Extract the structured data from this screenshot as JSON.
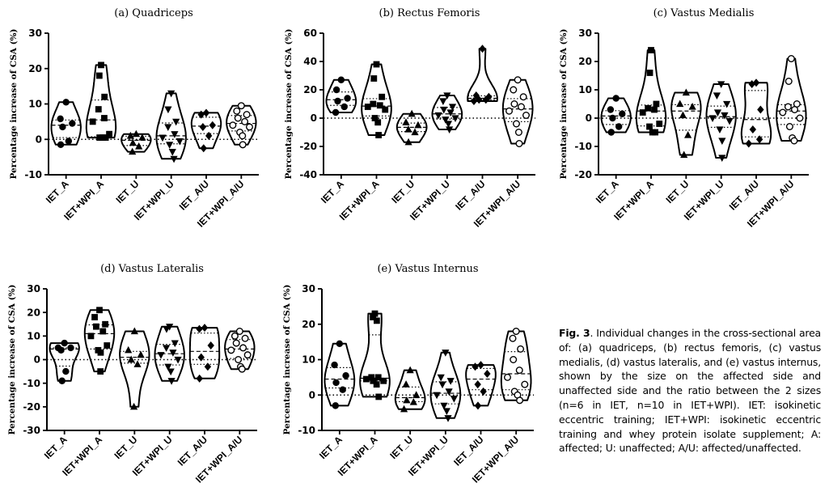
{
  "caption": {
    "label": "Fig. 3",
    "text": ". Individual changes in the cross-sectional area of: (a) quadriceps, (b) rectus femoris, (c) vastus medialis, (d) vastus lateralis, and (e) vastus internus, shown by the size on the affected side and unaffected side and the ratio between the 2 sizes (n=6 in IET, n=10 in IET+WPI). IET: isokinetic eccentric training; IET+WPI: isokinetic eccentric training and whey protein isolate supplement; A: affected; U: unaffected; A/U: affected/unaffected."
  },
  "chart_data": [
    {
      "type": "violin",
      "title": "(a) Quadriceps",
      "ylabel": "Percentage increase of CSA (%)",
      "ylim": [
        -10,
        30
      ],
      "yticks": [
        -10,
        0,
        10,
        20,
        30
      ],
      "reference_line": 0,
      "categories": [
        "IET_A",
        "IET+WPI_A",
        "IET_U",
        "IET+WPI_U",
        "IET_A/U",
        "IET+WPI_A/U"
      ],
      "markers": [
        "circle",
        "square",
        "triangle",
        "triangle-down",
        "diamond",
        "circle-open"
      ],
      "series": [
        {
          "values": [
            10.5,
            5.8,
            4.5,
            3.5,
            -0.5,
            -1.5
          ]
        },
        {
          "values": [
            21,
            18,
            12,
            8.5,
            6,
            5,
            1.5,
            0.5,
            0.5,
            0.5
          ]
        },
        {
          "values": [
            1.5,
            1,
            0.5,
            -1,
            -2,
            -3.5
          ]
        },
        {
          "values": [
            13,
            8.5,
            5,
            3.5,
            1.5,
            0.5,
            -0.5,
            -1.5,
            -3.5,
            -5.5
          ]
        },
        {
          "values": [
            7.5,
            7,
            4,
            3.5,
            1,
            -2.5
          ]
        },
        {
          "values": [
            9.5,
            8,
            7,
            6,
            5,
            4,
            3.5,
            2,
            1,
            -1.5
          ]
        }
      ]
    },
    {
      "type": "violin",
      "title": "(b) Rectus Femoris",
      "ylabel": "Percentage increase of CSA (%)",
      "ylim": [
        -40,
        60
      ],
      "yticks": [
        -40,
        -20,
        0,
        20,
        40,
        60
      ],
      "reference_line": 0,
      "categories": [
        "IET_A",
        "IET+WPI_A",
        "IET_U",
        "IET+WPI_U",
        "IET_A/U",
        "IET+WPI_A/U"
      ],
      "markers": [
        "circle",
        "square",
        "triangle",
        "triangle-down",
        "diamond",
        "circle-open"
      ],
      "series": [
        {
          "values": [
            27,
            20,
            14,
            12,
            8,
            4
          ]
        },
        {
          "values": [
            38,
            28,
            15,
            10,
            9,
            8,
            6,
            0,
            -3,
            -12
          ]
        },
        {
          "values": [
            3,
            -3,
            -5,
            -8,
            -10,
            -17
          ]
        },
        {
          "values": [
            16,
            12,
            8,
            6,
            4,
            2,
            0,
            -1,
            -4,
            -8
          ]
        },
        {
          "values": [
            49,
            16,
            15,
            13,
            13,
            12
          ]
        },
        {
          "values": [
            27,
            20,
            15,
            10,
            8,
            5,
            2,
            -4,
            -10,
            -18
          ]
        }
      ]
    },
    {
      "type": "violin",
      "title": "(c) Vastus Medialis",
      "ylabel": "Percentage increase of CSA (%)",
      "ylim": [
        -20,
        30
      ],
      "yticks": [
        -20,
        -10,
        0,
        10,
        20,
        30
      ],
      "reference_line": 0,
      "categories": [
        "IET_A",
        "IET+WPI_A",
        "IET_U",
        "IET+WPI_U",
        "IET_A/U",
        "IET+WPI_A/U"
      ],
      "markers": [
        "circle",
        "square",
        "triangle",
        "triangle-down",
        "diamond",
        "circle-open"
      ],
      "series": [
        {
          "values": [
            7,
            3,
            1.5,
            0,
            -3,
            -5
          ]
        },
        {
          "values": [
            24,
            16,
            5,
            3.5,
            3,
            2,
            -2,
            -3,
            -5,
            -5
          ]
        },
        {
          "values": [
            9,
            5,
            4,
            1,
            -6,
            -13
          ]
        },
        {
          "values": [
            12,
            8,
            5,
            2,
            1,
            0,
            -1,
            -4,
            -8,
            -14
          ]
        },
        {
          "values": [
            12.5,
            12,
            3,
            -4,
            -7.5,
            -9
          ]
        },
        {
          "values": [
            21,
            13,
            5,
            4,
            3,
            2,
            0,
            -3,
            -7,
            -8
          ]
        }
      ]
    },
    {
      "type": "violin",
      "title": "(d) Vastus Lateralis",
      "ylabel": "Percentage increase of CSA (%)",
      "ylim": [
        -30,
        30
      ],
      "yticks": [
        -30,
        -20,
        -10,
        0,
        10,
        20,
        30
      ],
      "reference_line": 0,
      "categories": [
        "IET_A",
        "IET+WPI_A",
        "IET_U",
        "IET+WPI_U",
        "IET_A/U",
        "IET+WPI_A/U"
      ],
      "markers": [
        "circle",
        "square",
        "triangle",
        "triangle-down",
        "diamond",
        "circle-open"
      ],
      "series": [
        {
          "values": [
            7,
            5,
            5,
            4,
            -5,
            -9
          ]
        },
        {
          "values": [
            21,
            18,
            15,
            14,
            12,
            10,
            6,
            4,
            3,
            -5
          ]
        },
        {
          "values": [
            12,
            4,
            2,
            0,
            -2,
            -20
          ]
        },
        {
          "values": [
            14,
            13,
            7,
            5,
            3,
            2,
            0,
            -3,
            -5,
            -9
          ]
        },
        {
          "values": [
            13.5,
            13,
            6,
            1,
            -3,
            -8
          ]
        },
        {
          "values": [
            12,
            10,
            9,
            7,
            5,
            4,
            2,
            0,
            -3,
            -4
          ]
        }
      ]
    },
    {
      "type": "violin",
      "title": "(e) Vastus Internus",
      "ylabel": "Percentage increase of CSA (%)",
      "ylim": [
        -10,
        30
      ],
      "yticks": [
        -10,
        0,
        10,
        20,
        30
      ],
      "reference_line": 0,
      "categories": [
        "IET_A",
        "IET+WPI_A",
        "IET_U",
        "IET+WPI_U",
        "IET_A/U",
        "IET+WPI_A/U"
      ],
      "markers": [
        "circle",
        "square",
        "triangle",
        "triangle-down",
        "diamond",
        "circle-open"
      ],
      "series": [
        {
          "values": [
            14.5,
            8.5,
            5.5,
            3.5,
            1.5,
            -3
          ]
        },
        {
          "values": [
            23,
            22,
            21,
            5,
            5,
            4.5,
            4,
            4,
            3,
            -0.5
          ]
        },
        {
          "values": [
            7,
            3,
            0,
            -1.5,
            -2,
            -4
          ]
        },
        {
          "values": [
            12,
            5,
            4,
            3,
            1,
            0,
            -1,
            -3,
            -4.5,
            -6.5
          ]
        },
        {
          "values": [
            8.5,
            8,
            6,
            3,
            1,
            -3
          ]
        },
        {
          "values": [
            18,
            16,
            13,
            10,
            7,
            5,
            3,
            1,
            0,
            -1.5
          ]
        }
      ]
    }
  ]
}
